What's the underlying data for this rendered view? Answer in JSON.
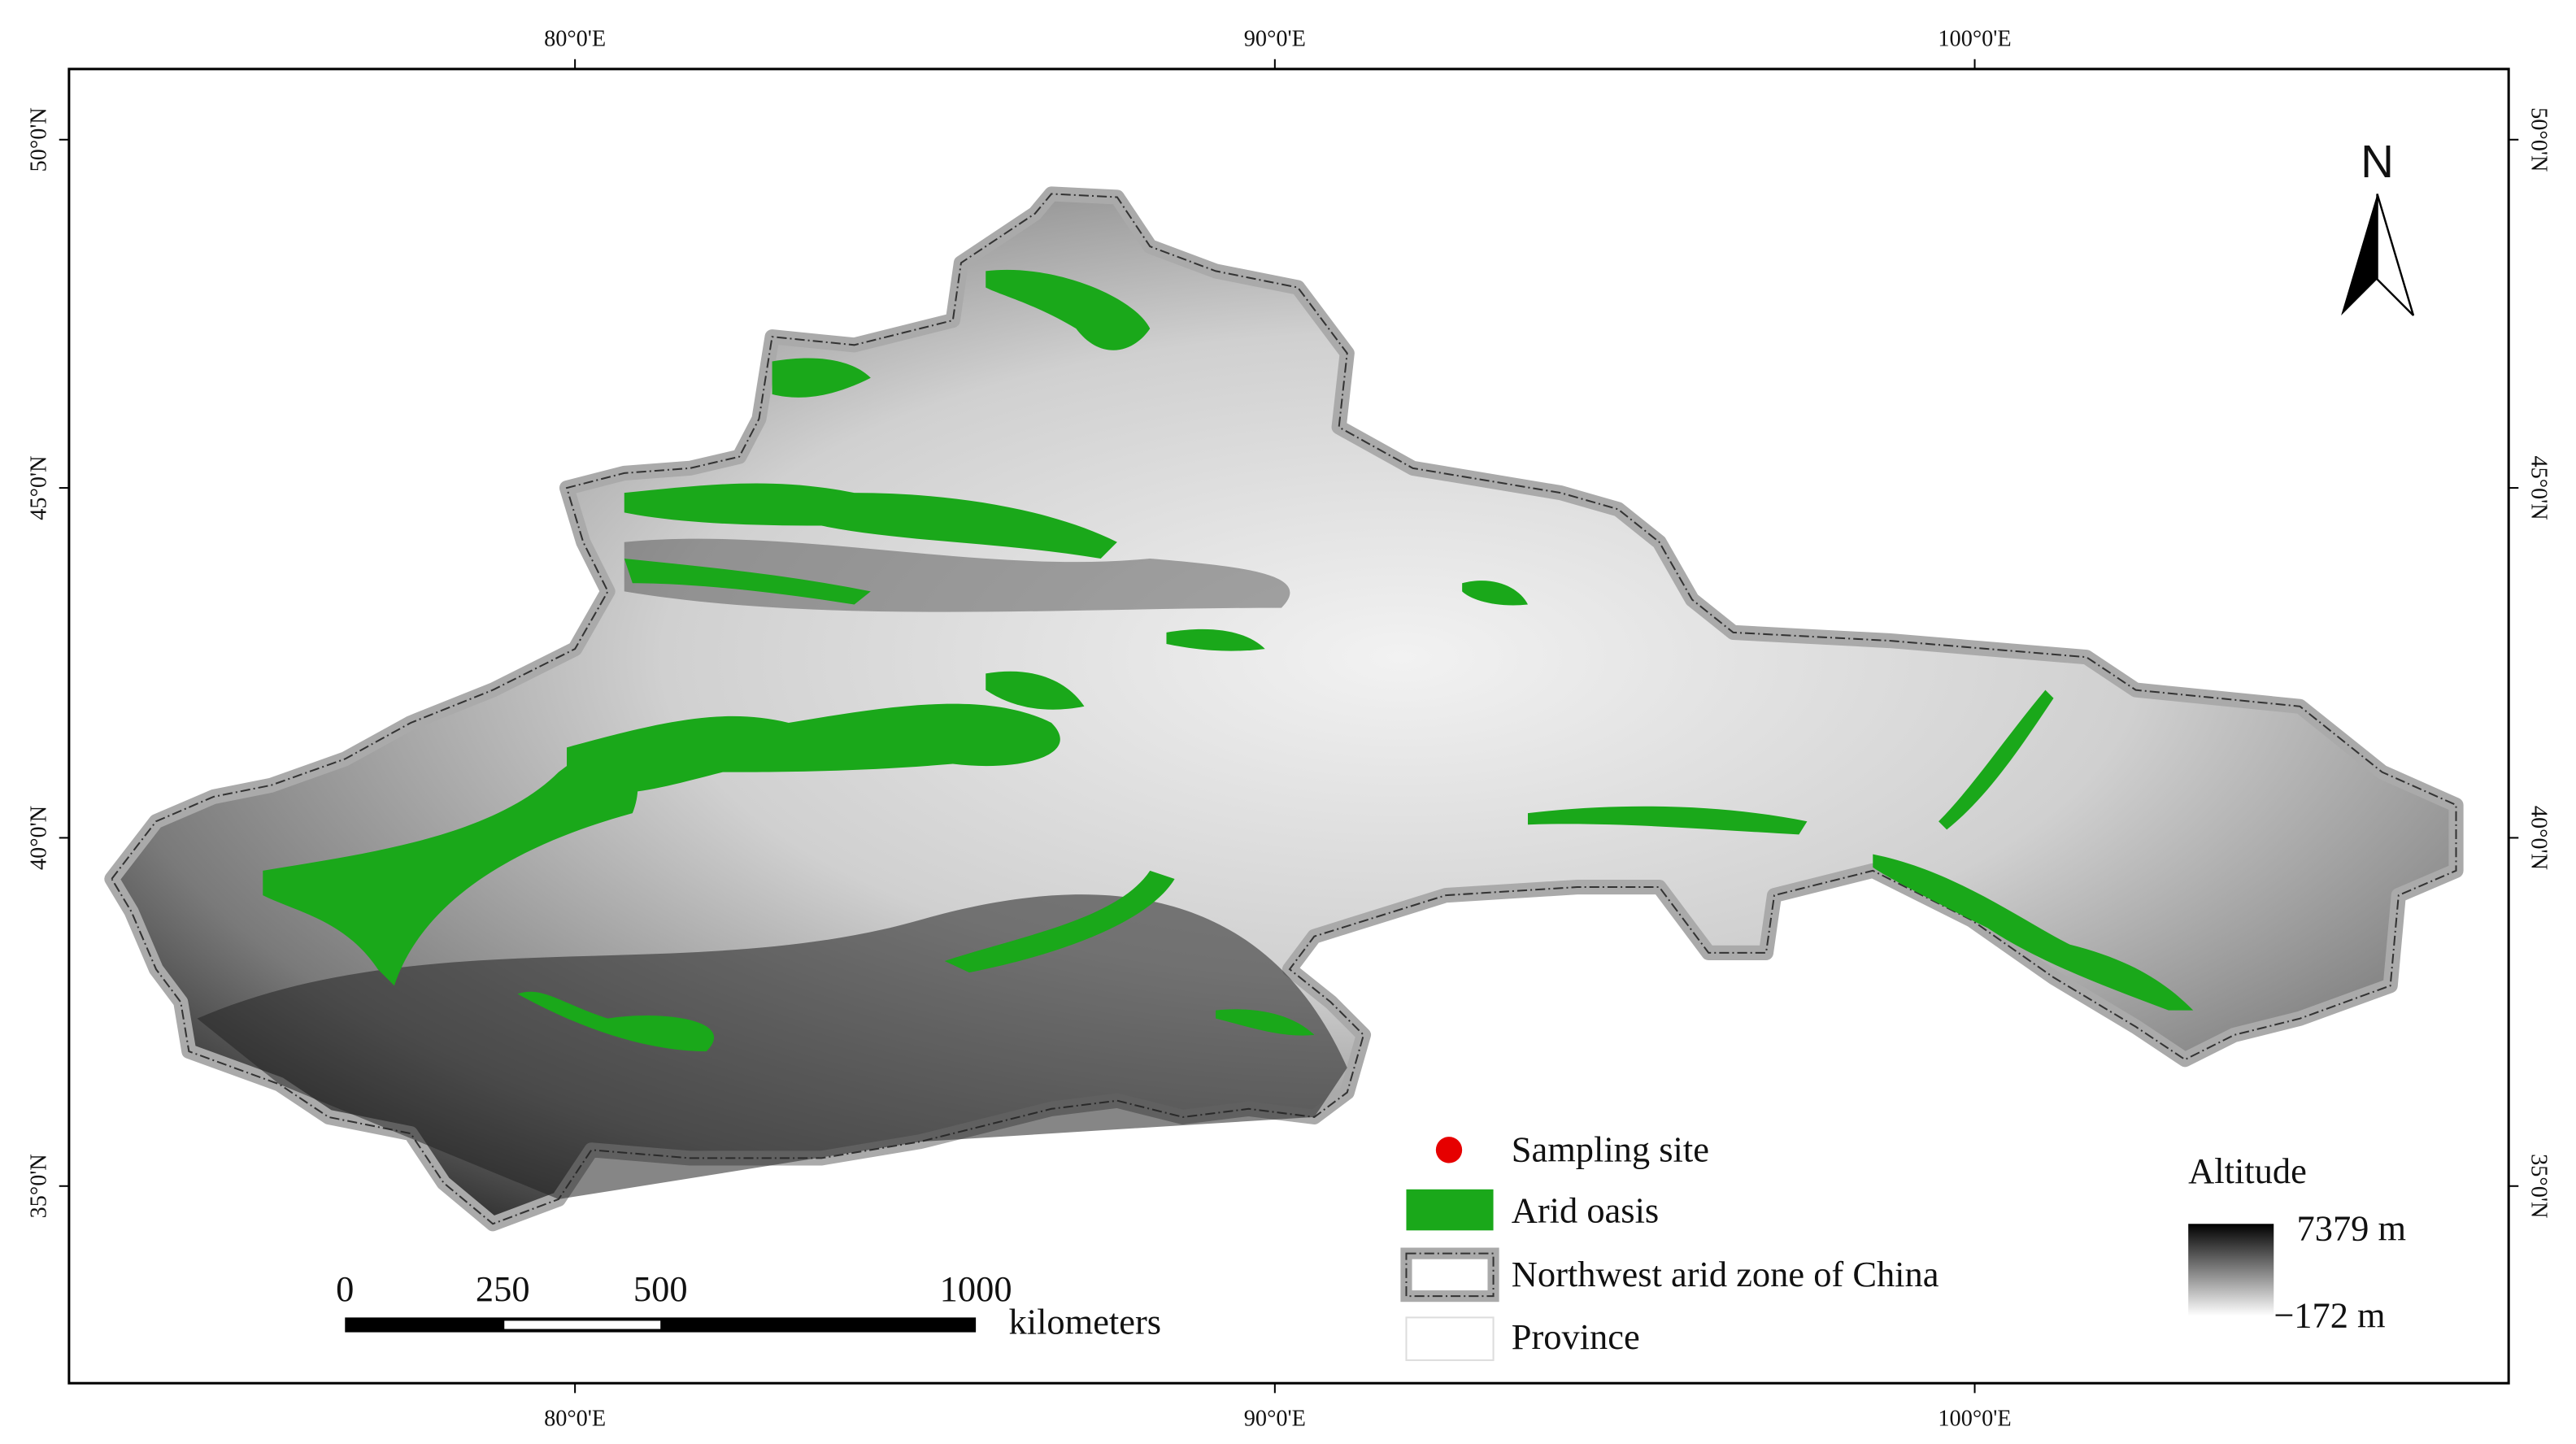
{
  "map": {
    "longitude_labels_top": [
      "80°0'E",
      "90°0'E",
      "100°0'E"
    ],
    "longitude_labels_bottom": [
      "80°0'E",
      "90°0'E",
      "100°0'E"
    ],
    "latitude_labels_left": [
      "50°0'N",
      "45°0'N",
      "40°0'N",
      "35°0'N"
    ],
    "latitude_labels_right": [
      "50°0'N",
      "45°0'N",
      "40°0'N",
      "35°0'N"
    ],
    "north_arrow": "N",
    "legend": [
      "Sampling site",
      "Arid oasis",
      "Northwest arid zone of China",
      "Province"
    ],
    "scale_bar": {
      "labels": [
        "0",
        "250",
        "500",
        "1000"
      ],
      "unit": "kilometers"
    },
    "altitude_legend": {
      "title": "Altitude",
      "max": "7379 m",
      "min": "−172 m"
    }
  }
}
